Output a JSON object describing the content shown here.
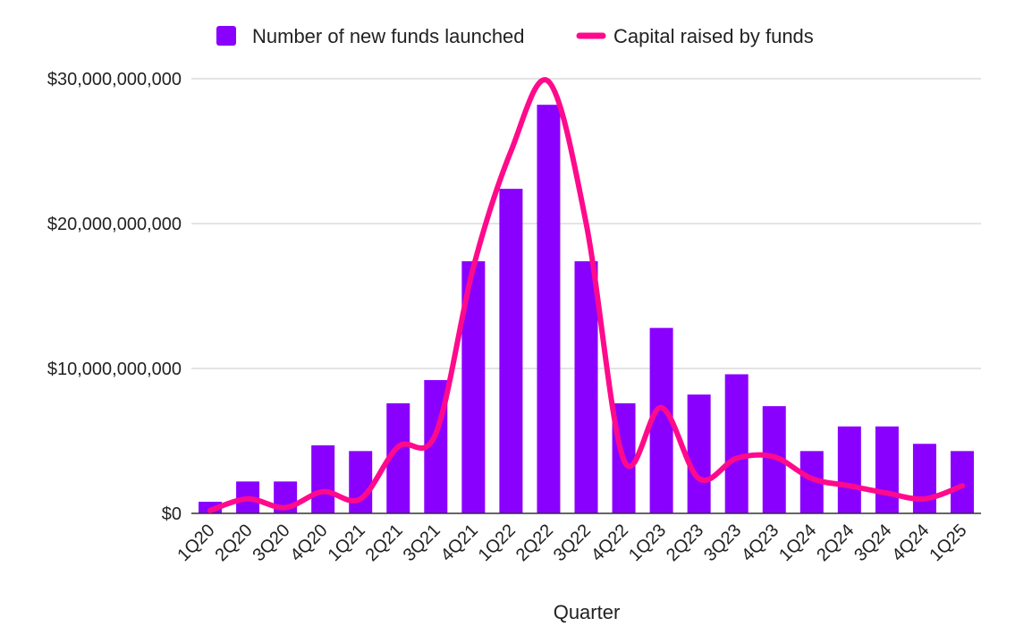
{
  "chart_data": {
    "type": "bar",
    "title": "",
    "xlabel": "Quarter",
    "ylabel": "",
    "categories": [
      "1Q20",
      "2Q20",
      "3Q20",
      "4Q20",
      "1Q21",
      "2Q21",
      "3Q21",
      "4Q21",
      "1Q22",
      "2Q22",
      "3Q22",
      "4Q22",
      "1Q23",
      "2Q23",
      "3Q23",
      "4Q23",
      "1Q24",
      "2Q24",
      "3Q24",
      "4Q24",
      "1Q25"
    ],
    "ylim": [
      0,
      30000000000
    ],
    "yticks": [
      {
        "value": 0,
        "label": "$0"
      },
      {
        "value": 10000000000,
        "label": "$10,000,000,000"
      },
      {
        "value": 20000000000,
        "label": "$20,000,000,000"
      },
      {
        "value": 30000000000,
        "label": "$30,000,000,000"
      }
    ],
    "grid": true,
    "legend_position": "top",
    "series": [
      {
        "name": "Number of new funds launched",
        "type": "bar",
        "color": "#8a00ff",
        "values": [
          800000000,
          2200000000,
          2200000000,
          4700000000,
          4300000000,
          7600000000,
          9200000000,
          17400000000,
          22400000000,
          28200000000,
          17400000000,
          7600000000,
          12800000000,
          8200000000,
          9600000000,
          7400000000,
          4300000000,
          6000000000,
          6000000000,
          4800000000,
          4300000000
        ]
      },
      {
        "name": "Capital raised by funds",
        "type": "line",
        "color": "#ff0a8c",
        "values": [
          200000000,
          1000000000,
          400000000,
          1500000000,
          1000000000,
          4600000000,
          5500000000,
          17000000000,
          25000000000,
          29800000000,
          20000000000,
          3700000000,
          7300000000,
          2400000000,
          3800000000,
          3900000000,
          2400000000,
          1900000000,
          1400000000,
          1000000000,
          1900000000
        ]
      }
    ]
  }
}
